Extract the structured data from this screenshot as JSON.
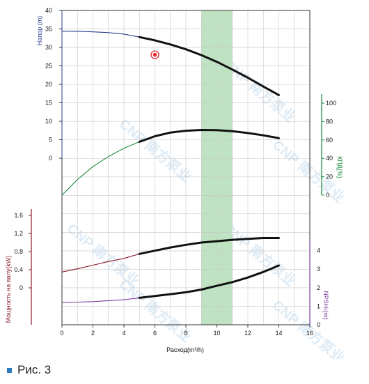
{
  "figure": {
    "caption": "Рис. 3"
  },
  "watermark": {
    "text": "CNP 南方泵业"
  },
  "chart_data": {
    "type": "line",
    "xlabel": "Расход(m³/h)",
    "x_ticks": [
      0,
      2,
      4,
      6,
      8,
      10,
      12,
      14,
      16
    ],
    "xlim": [
      0,
      16
    ],
    "recommended_range": {
      "x_start": 9,
      "x_end": 11,
      "color": "#bfe3c2"
    },
    "duty_point": {
      "x": 6,
      "y": 28,
      "axis": "head",
      "color": "#e03030"
    },
    "axes": {
      "head": {
        "label": "Напор (m)",
        "ticks": [
          0,
          5,
          10,
          15,
          20,
          25,
          30,
          35,
          40
        ],
        "ylim": [
          0,
          40
        ],
        "color": "#2c3e8c"
      },
      "efficiency": {
        "label": "КПД(%)",
        "ticks": [
          0,
          20,
          40,
          60,
          80,
          100
        ],
        "color": "#1a8a3c"
      },
      "power": {
        "label": "Мощность на валу(kW)",
        "ticks": [
          0,
          0.4,
          0.8,
          1.2,
          1.6
        ],
        "color": "#8a1a2a"
      },
      "npsh": {
        "label": "NPSHr(m)",
        "ticks": [
          0,
          1,
          2,
          3,
          4
        ],
        "color": "#7a3c9c"
      }
    },
    "series": [
      {
        "axis": "head",
        "color": "#2c3e8c",
        "points": [
          [
            0,
            34.4
          ],
          [
            1,
            34.35
          ],
          [
            2,
            34.2
          ],
          [
            3,
            34.0
          ],
          [
            4,
            33.6
          ],
          [
            5,
            32.8
          ],
          [
            6,
            31.9
          ],
          [
            7,
            30.8
          ],
          [
            8,
            29.5
          ],
          [
            9,
            27.9
          ],
          [
            10,
            26.1
          ],
          [
            11,
            24.0
          ],
          [
            12,
            21.8
          ],
          [
            13,
            19.4
          ],
          [
            14,
            17.1
          ]
        ]
      },
      {
        "axis": "efficiency",
        "color": "#1a8a3c",
        "points": [
          [
            0,
            0
          ],
          [
            1,
            17
          ],
          [
            2,
            31
          ],
          [
            3,
            42
          ],
          [
            4,
            51
          ],
          [
            5,
            58
          ],
          [
            6,
            64
          ],
          [
            7,
            68
          ],
          [
            8,
            70
          ],
          [
            9,
            70.8
          ],
          [
            10,
            70.6
          ],
          [
            11,
            69.5
          ],
          [
            12,
            67.5
          ],
          [
            13,
            65
          ],
          [
            14,
            62
          ]
        ]
      },
      {
        "axis": "power",
        "color": "#8a1a2a",
        "points": [
          [
            0,
            0.35
          ],
          [
            1,
            0.42
          ],
          [
            2,
            0.5
          ],
          [
            3,
            0.58
          ],
          [
            4,
            0.65
          ],
          [
            5,
            0.75
          ],
          [
            6,
            0.82
          ],
          [
            7,
            0.89
          ],
          [
            8,
            0.95
          ],
          [
            9,
            1.0
          ],
          [
            10,
            1.03
          ],
          [
            11,
            1.06
          ],
          [
            12,
            1.08
          ],
          [
            13,
            1.1
          ],
          [
            14,
            1.1
          ]
        ]
      },
      {
        "axis": "npsh",
        "color": "#7a3c9c",
        "points": [
          [
            0,
            1.2
          ],
          [
            1,
            1.22
          ],
          [
            2,
            1.25
          ],
          [
            3,
            1.3
          ],
          [
            4,
            1.35
          ],
          [
            5,
            1.45
          ],
          [
            6,
            1.55
          ],
          [
            7,
            1.65
          ],
          [
            8,
            1.75
          ],
          [
            9,
            1.9
          ],
          [
            10,
            2.1
          ],
          [
            11,
            2.3
          ],
          [
            12,
            2.55
          ],
          [
            13,
            2.85
          ],
          [
            14,
            3.2
          ]
        ]
      }
    ],
    "operating_range": {
      "x_start": 5,
      "x_end": 14,
      "bold_color": "#111111"
    }
  }
}
